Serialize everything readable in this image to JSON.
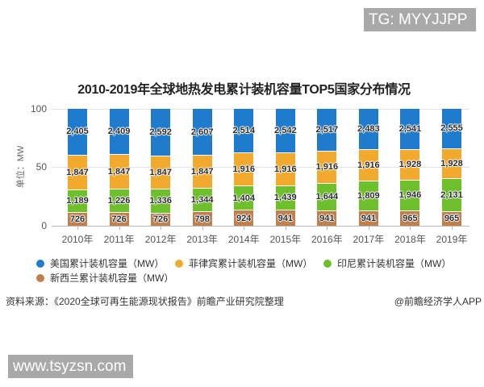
{
  "badges": {
    "top_right": "TG: MYYJJPP",
    "bottom_left": "www.tsyzsn.com"
  },
  "chart_data": {
    "type": "bar",
    "stacked": true,
    "normalized_percent": true,
    "title": "2010-2019年全球地热发电累计装机容量TOP5国家分布情况",
    "xlabel": "",
    "ylabel": "单位：MW",
    "ylim": [
      0,
      100
    ],
    "yticks": [
      "0",
      "50",
      "100"
    ],
    "grid": true,
    "legend_position": "bottom",
    "categories": [
      "2010年",
      "2011年",
      "2012年",
      "2013年",
      "2014年",
      "2015年",
      "2016年",
      "2017年",
      "2018年",
      "2019年"
    ],
    "series": [
      {
        "name": "美国累计装机容量（MW）",
        "color": "#1f7bcc",
        "values": [
          2405,
          2409,
          2592,
          2607,
          2514,
          2542,
          2517,
          2483,
          2541,
          2555
        ]
      },
      {
        "name": "菲律宾累计装机容量（MW）",
        "color": "#f2aa2e",
        "values": [
          1847,
          1847,
          1847,
          1847,
          1916,
          1916,
          1916,
          1916,
          1928,
          1928
        ]
      },
      {
        "name": "印尼累计装机容量（MW）",
        "color": "#6dbf2c",
        "values": [
          1189,
          1226,
          1336,
          1344,
          1404,
          1439,
          1644,
          1809,
          1946,
          2131
        ]
      },
      {
        "name": "新西兰累计装机容量（MW）",
        "color": "#c0804e",
        "values": [
          726,
          726,
          726,
          798,
          924,
          941,
          941,
          941,
          965,
          965
        ]
      }
    ]
  },
  "footer": {
    "source": "资料来源：《2020全球可再生能源现状报告》前瞻产业研究院整理",
    "credit": "@前瞻经济学人APP"
  }
}
